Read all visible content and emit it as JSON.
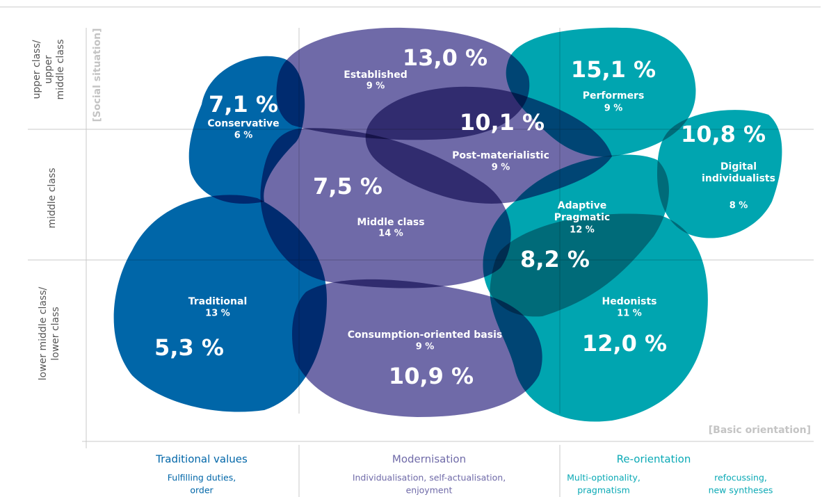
{
  "y_axis_label": "[Social situation]",
  "x_axis_label": "[Basic orientation]",
  "rows": [
    [
      "upper class/",
      "upper",
      "middle class"
    ],
    [
      "middle class"
    ],
    [
      "lower middle class/",
      "lower class"
    ]
  ],
  "columns": [
    {
      "title": "Traditional values",
      "notes": [
        [
          "Fulfilling duties,",
          "order"
        ]
      ]
    },
    {
      "title": "Modernisation",
      "notes": [
        [
          "Individualisation, self-actualisation,",
          "enjoyment"
        ]
      ]
    },
    {
      "title": "Re-orientation",
      "notes": [
        [
          "Multi-optionality,",
          "pragmatism"
        ],
        [
          "refocussing,",
          "new syntheses"
        ]
      ]
    }
  ],
  "milieus": [
    {
      "name": [
        "Established"
      ],
      "share": "9 %",
      "figure": "13,0 %"
    },
    {
      "name": [
        "Conservative"
      ],
      "share": "6 %",
      "figure": "7,1 %"
    },
    {
      "name": [
        "Performers"
      ],
      "share": "9 %",
      "figure": "15,1 %"
    },
    {
      "name": [
        "Post-materialistic"
      ],
      "share": "9 %",
      "figure": "10,1 %"
    },
    {
      "name": [
        "Digital",
        "individualists"
      ],
      "share": "8 %",
      "figure": "10,8 %"
    },
    {
      "name": [
        "Middle class"
      ],
      "share": "14 %",
      "figure": "7,5 %"
    },
    {
      "name": [
        "Adaptive",
        "Pragmatic"
      ],
      "share": "12 %",
      "figure": "8,2 %"
    },
    {
      "name": [
        "Traditional"
      ],
      "share": "13 %",
      "figure": "5,3 %"
    },
    {
      "name": [
        "Hedonists"
      ],
      "share": "11 %",
      "figure": "12,0 %"
    },
    {
      "name": [
        "Consumption-oriented basis"
      ],
      "share": "9 %",
      "figure": "10,9 %"
    }
  ]
}
